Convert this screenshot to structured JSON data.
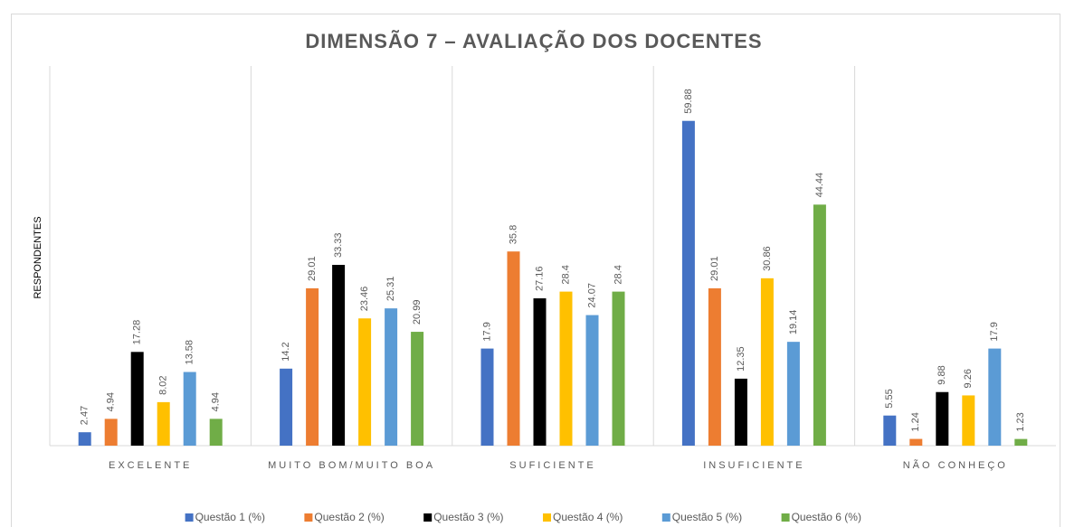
{
  "chart_data": {
    "type": "bar",
    "title": "DIMENSÃO 7 – AVALIAÇÃO DOS DOCENTES",
    "y_label": "RESPONDENTES",
    "categories": [
      "EXCELENTE",
      "MUITO BOM/MUITO BOA",
      "SUFICIENTE",
      "INSUFICIENTE",
      "NÃO CONHEÇO"
    ],
    "series": [
      {
        "name": "Questão 1 (%)",
        "color": "#4472c4",
        "values": [
          2.47,
          14.2,
          17.9,
          59.88,
          5.55
        ]
      },
      {
        "name": "Questão 2 (%)",
        "color": "#ed7d31",
        "values": [
          4.94,
          29.01,
          35.8,
          29.01,
          1.24
        ]
      },
      {
        "name": "Questão 3 (%)",
        "color": "#000000",
        "values": [
          17.28,
          33.33,
          27.16,
          12.35,
          9.88
        ]
      },
      {
        "name": "Questão 4 (%)",
        "color": "#ffc000",
        "values": [
          8.02,
          23.46,
          28.4,
          30.86,
          9.26
        ]
      },
      {
        "name": "Questão 5 (%)",
        "color": "#5b9bd5",
        "values": [
          13.58,
          25.31,
          24.07,
          19.14,
          17.9
        ]
      },
      {
        "name": "Questão 6 (%)",
        "color": "#70ad47",
        "values": [
          4.94,
          20.99,
          28.4,
          44.44,
          1.23
        ]
      }
    ],
    "ylim": [
      0,
      70
    ],
    "legend": "bottom"
  }
}
